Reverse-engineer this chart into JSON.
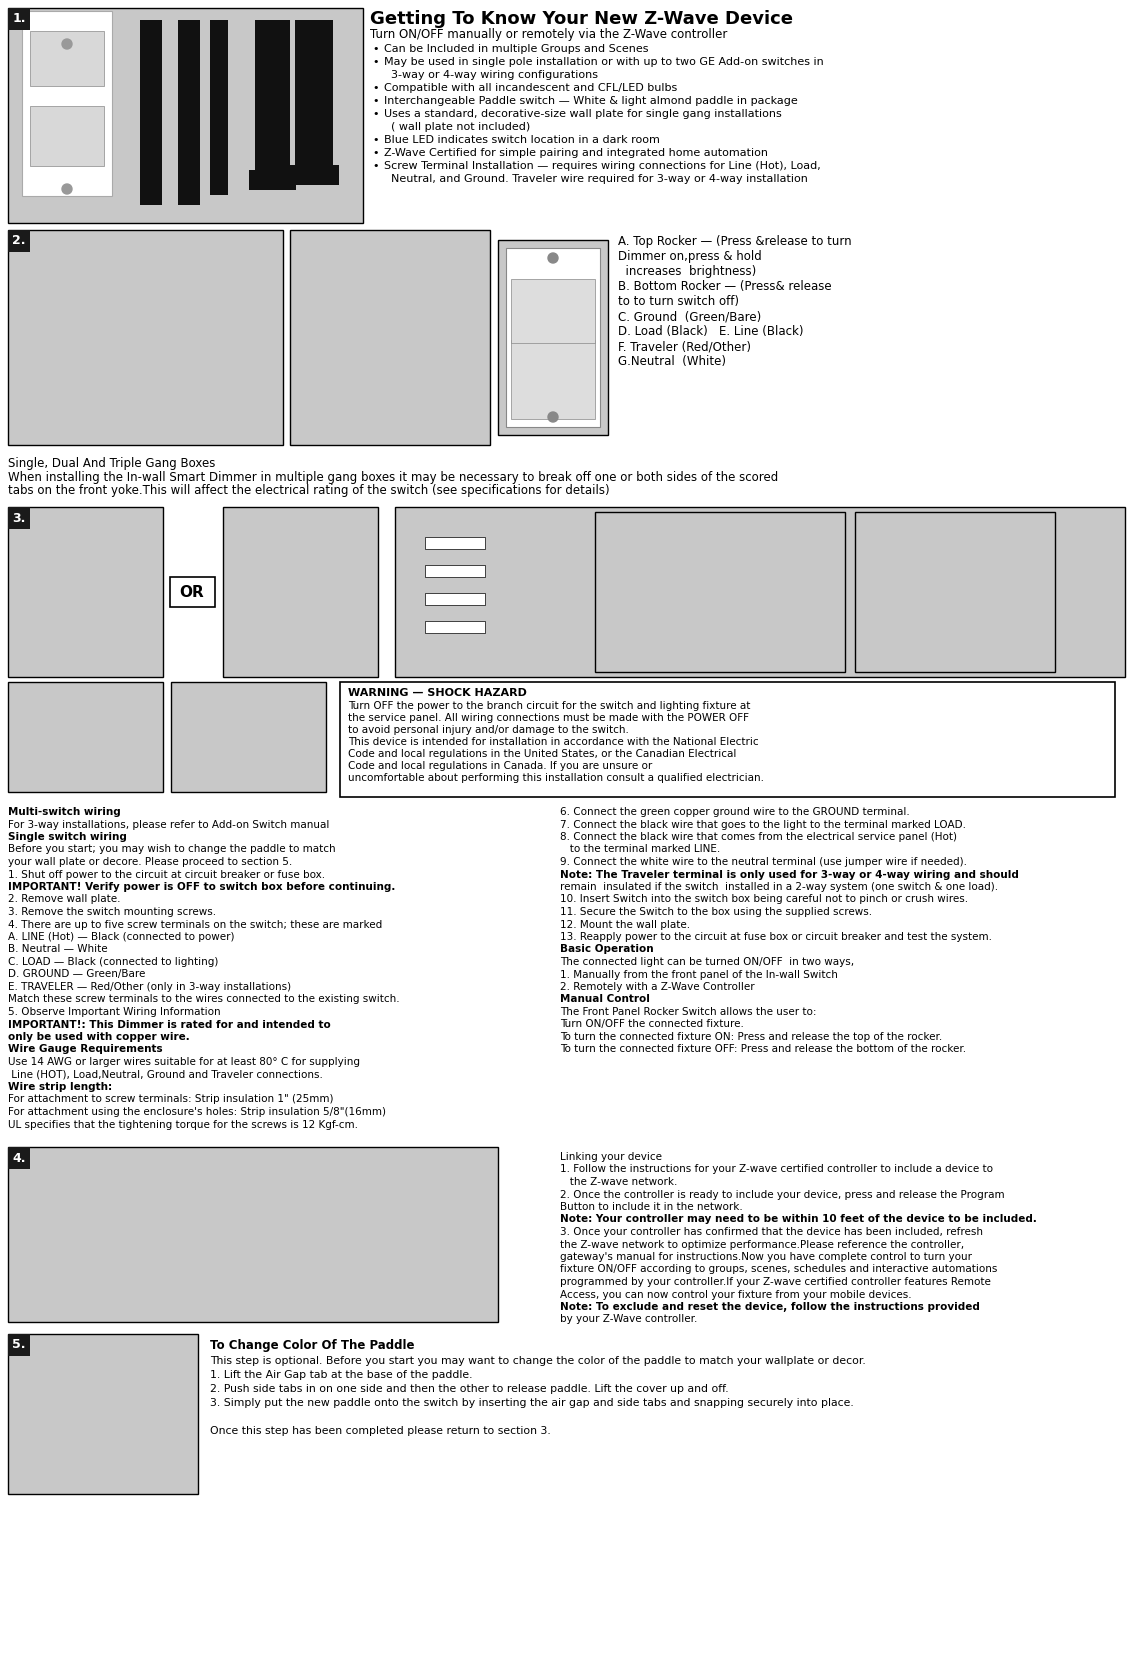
{
  "bg_color": "#ffffff",
  "title": "Getting To Know Your New Z-Wave Device",
  "section1_intro": "Turn ON/OFF manually or remotely via the Z-Wave controller",
  "section1_bullets": [
    "Can be Included in multiple Groups and Scenes",
    "May be used in single pole installation or with up to two GE Add-on switches in\n  3-way or 4-way wiring configurations",
    "Compatible with all incandescent and CFL/LED bulbs",
    "Interchangeable Paddle switch — White & light almond paddle in package",
    "Uses a standard, decorative-size wall plate for single gang installations\n  ( wall plate not included)",
    "Blue LED indicates switch location in a dark room",
    "Z-Wave Certified for simple pairing and integrated home automation",
    "Screw Terminal Installation — requires wiring connections for Line (Hot), Load,\n  Neutral, and Ground. Traveler wire required for 3-way or 4-way installation"
  ],
  "section2_parts_text": "A. Top Rocker — (Press &release to turn\nDimmer on,press & hold\n  increases  brightness)\nB. Bottom Rocker — (Press& release\nto to turn switch off)\nC. Ground  (Green/Bare)\nD. Load (Black)   E. Line (Black)\nF. Traveler (Red/Other)\nG.Neutral  (White)",
  "section2_gang_title": "Single, Dual And Triple Gang Boxes",
  "section2_gang_text": "When installing the In-wall Smart Dimmer in multiple gang boxes it may be necessary to break off one or both sides of the scored\ntabs on the front yoke.This will affect the electrical rating of the switch (see specifications for details)",
  "warning_title": "WARNING — SHOCK HAZARD",
  "warning_text": "Turn OFF the power to the branch circuit for the switch and lighting fixture at\nthe service panel. All wiring connections must be made with the POWER OFF\nto avoid personal injury and/or damage to the switch.\nThis device is intended for installation in accordance with the National Electric\nCode and local regulations in the United States, or the Canadian Electrical\nCode and local regulations in Canada. If you are unsure or\nuncomfortable about performing this installation consult a qualified electrician.",
  "multi_switch_text_lines": [
    [
      "bold",
      "Multi-switch wiring"
    ],
    [
      "normal",
      "For 3-way installations, please refer to Add-on Switch manual"
    ],
    [
      "bold",
      "Single switch wiring"
    ],
    [
      "normal",
      "Before you start; you may wish to change the paddle to match"
    ],
    [
      "normal",
      "your wall plate or decore. Please proceed to section 5."
    ],
    [
      "normal",
      "1. Shut off power to the circuit at circuit breaker or fuse box."
    ],
    [
      "bold",
      "IMPORTANT! Verify power is OFF to switch box before continuing."
    ],
    [
      "normal",
      "2. Remove wall plate."
    ],
    [
      "normal",
      "3. Remove the switch mounting screws."
    ],
    [
      "normal",
      "4. There are up to five screw terminals on the switch; these are marked"
    ],
    [
      "normal",
      "A. LINE (Hot) — Black (connected to power)"
    ],
    [
      "normal",
      "B. Neutral — White"
    ],
    [
      "normal",
      "C. LOAD — Black (connected to lighting)"
    ],
    [
      "normal",
      "D. GROUND — Green/Bare"
    ],
    [
      "normal",
      "E. TRAVELER — Red/Other (only in 3-way installations)"
    ],
    [
      "normal",
      "Match these screw terminals to the wires connected to the existing switch."
    ],
    [
      "normal",
      "5. Observe Important Wiring Information"
    ],
    [
      "bold",
      "IMPORTANT!: This Dimmer is rated for and intended to"
    ],
    [
      "bold",
      "only be used with copper wire."
    ],
    [
      "bold",
      "Wire Gauge Requirements"
    ],
    [
      "normal",
      "Use 14 AWG or larger wires suitable for at least 80° C for supplying"
    ],
    [
      "normal",
      " Line (HOT), Load,Neutral, Ground and Traveler connections."
    ],
    [
      "bold",
      "Wire strip length:"
    ],
    [
      "normal",
      "For attachment to screw terminals: Strip insulation 1\" (25mm)"
    ],
    [
      "normal",
      "For attachment using the enclosure's holes: Strip insulation 5/8\"(16mm)"
    ],
    [
      "normal",
      "UL specifies that the tightening torque for the screws is 12 Kgf-cm."
    ]
  ],
  "right_col_lines": [
    [
      "normal",
      "6. Connect the green copper ground wire to the GROUND terminal."
    ],
    [
      "normal",
      "7. Connect the black wire that goes to the light to the terminal marked LOAD."
    ],
    [
      "normal",
      "8. Connect the black wire that comes from the electrical service panel (Hot)"
    ],
    [
      "normal",
      "   to the terminal marked LINE."
    ],
    [
      "normal",
      "9. Connect the white wire to the neutral terminal (use jumper wire if needed)."
    ],
    [
      "bold",
      "Note: The Traveler terminal is only used for 3-way or 4-way wiring and should"
    ],
    [
      "normal",
      "remain  insulated if the switch  installed in a 2-way system (one switch & one load)."
    ],
    [
      "normal",
      "10. Insert Switch into the switch box being careful not to pinch or crush wires."
    ],
    [
      "normal",
      "11. Secure the Switch to the box using the supplied screws."
    ],
    [
      "normal",
      "12. Mount the wall plate."
    ],
    [
      "normal",
      "13. Reapply power to the circuit at fuse box or circuit breaker and test the system."
    ],
    [
      "bold",
      "Basic Operation"
    ],
    [
      "normal",
      "The connected light can be turned ON/OFF  in two ways,"
    ],
    [
      "normal",
      "1. Manually from the front panel of the In-wall Switch"
    ],
    [
      "normal",
      "2. Remotely with a Z-Wave Controller"
    ],
    [
      "bold",
      "Manual Control"
    ],
    [
      "normal",
      "The Front Panel Rocker Switch allows the user to:"
    ],
    [
      "normal",
      "Turn ON/OFF the connected fixture."
    ],
    [
      "normal",
      "To turn the connected fixture ON: Press and release the top of the rocker."
    ],
    [
      "normal",
      "To turn the connected fixture OFF: Press and release the bottom of the rocker."
    ]
  ],
  "section4_lines": [
    [
      "normal",
      "Linking your device"
    ],
    [
      "normal",
      "1. Follow the instructions for your Z-wave certified controller to include a device to"
    ],
    [
      "normal",
      "   the Z-wave network."
    ],
    [
      "normal",
      "2. Once the controller is ready to include your device, press and release the Program"
    ],
    [
      "normal",
      "Button to include it in the network."
    ],
    [
      "bold",
      "Note: Your controller may need to be within 10 feet of the device to be included."
    ],
    [
      "normal",
      "3. Once your controller has confirmed that the device has been included, refresh"
    ],
    [
      "normal",
      "the Z-wave network to optimize performance.Please reference the controller,"
    ],
    [
      "normal",
      "gateway's manual for instructions.Now you have complete control to turn your"
    ],
    [
      "normal",
      "fixture ON/OFF according to groups, scenes, schedules and interactive automations"
    ],
    [
      "normal",
      "programmed by your controller.If your Z-wave certified controller features Remote"
    ],
    [
      "normal",
      "Access, you can now control your fixture from your mobile devices."
    ],
    [
      "bold",
      "Note: To exclude and reset the device, follow the instructions provided"
    ],
    [
      "normal",
      "by your Z-Wave controller."
    ]
  ],
  "section5_title": "To Change Color Of The Paddle",
  "section5_lines": [
    [
      "normal",
      "This step is optional. Before you start you may want to change the color of the paddle to match your wallplate or decor."
    ],
    [
      "normal",
      "1. Lift the Air Gap tab at the base of the paddle."
    ],
    [
      "normal",
      "2. Push side tabs in on one side and then the other to release paddle. Lift the cover up and off."
    ],
    [
      "normal",
      "3. Simply put the new paddle onto the switch by inserting the air gap and side tabs and snapping securely into place."
    ],
    [
      "normal",
      ""
    ],
    [
      "normal",
      "Once this step has been completed please return to section 3."
    ]
  ],
  "gray_bg": "#c8c8c8",
  "label_bg": "#1a1a1a",
  "label_fg": "#ffffff"
}
